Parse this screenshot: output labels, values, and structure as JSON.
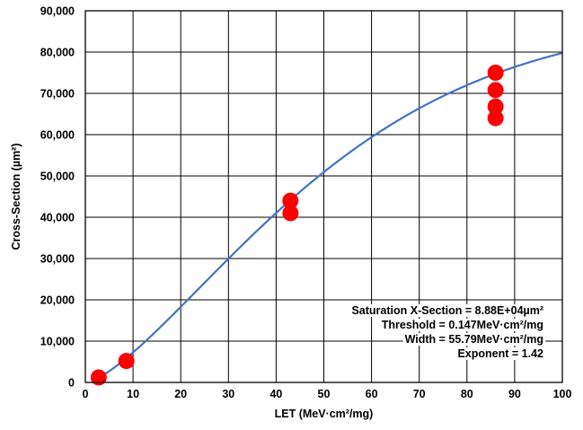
{
  "chart_data": {
    "type": "scatter",
    "title": "",
    "xlabel": "LET (MeV·cm²/mg)",
    "ylabel": "Cross-Section (µm²)",
    "xlim": [
      0,
      100
    ],
    "ylim": [
      0,
      90000
    ],
    "x_ticks": [
      0,
      10,
      20,
      30,
      40,
      50,
      60,
      70,
      80,
      90,
      100
    ],
    "y_ticks": [
      0,
      10000,
      20000,
      30000,
      40000,
      50000,
      60000,
      70000,
      80000,
      90000
    ],
    "x_tick_labels": [
      "0",
      "10",
      "20",
      "30",
      "40",
      "50",
      "60",
      "70",
      "80",
      "90",
      "100"
    ],
    "y_tick_labels": [
      "0",
      "10,000",
      "20,000",
      "30,000",
      "40,000",
      "50,000",
      "60,000",
      "70,000",
      "80,000",
      "90,000"
    ],
    "grid": true,
    "series": [
      {
        "type": "scatter",
        "color": "#ff0000",
        "points": [
          {
            "x": 2.8,
            "y": 1200
          },
          {
            "x": 8.6,
            "y": 5200
          },
          {
            "x": 43.0,
            "y": 44000
          },
          {
            "x": 43.0,
            "y": 41000
          },
          {
            "x": 86.0,
            "y": 75000
          },
          {
            "x": 86.0,
            "y": 70800
          },
          {
            "x": 86.0,
            "y": 66800
          },
          {
            "x": 86.0,
            "y": 64000
          }
        ]
      },
      {
        "type": "line",
        "color": "#4472c4",
        "fit": "weibull",
        "saturation": 88800,
        "threshold": 0.147,
        "width": 55.79,
        "exponent": 1.42,
        "x_range": [
          2.5,
          100
        ]
      }
    ],
    "annotations": [
      "Saturation X-Section = 8.88E+04µm²",
      "Threshold = 0.147MeV·cm²/mg",
      "Width = 55.79MeV·cm²/mg",
      "Exponent = 1.42"
    ]
  }
}
